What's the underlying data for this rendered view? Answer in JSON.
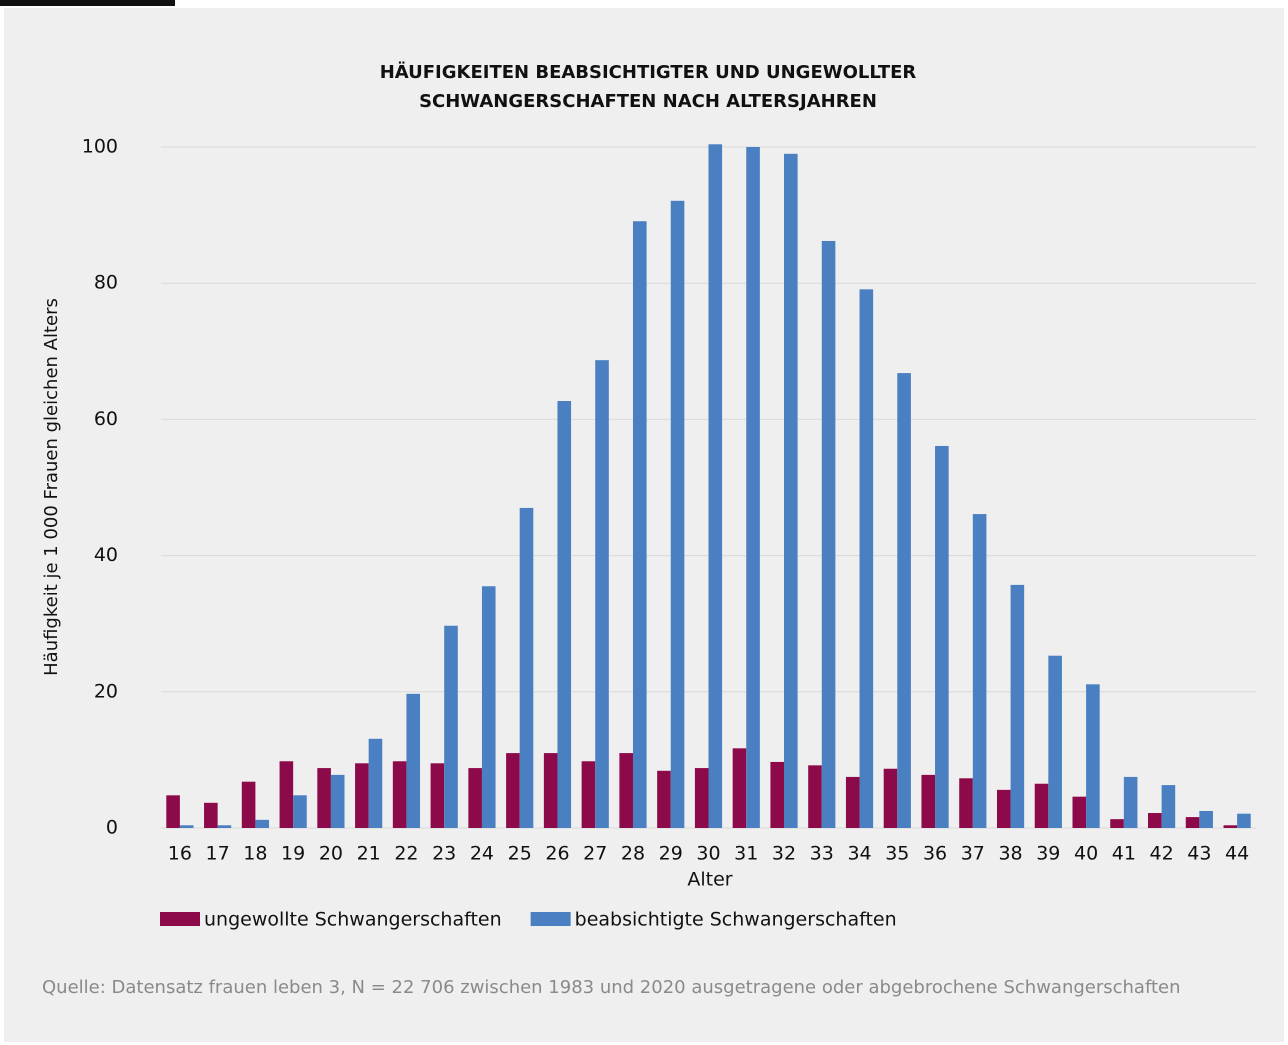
{
  "chart_data": {
    "type": "bar",
    "title": [
      "HÄUFIGKEITEN BEABSICHTIGTER UND UNGEWOLLTER",
      "SCHWANGERSCHAFTEN NACH ALTERSJAHREN"
    ],
    "x_label": "Alter",
    "y_label": "Häufigkeit je 1 000 Frauen gleichen Alters",
    "categories": [
      16,
      17,
      18,
      19,
      20,
      21,
      22,
      23,
      24,
      25,
      26,
      27,
      28,
      29,
      30,
      31,
      32,
      33,
      34,
      35,
      36,
      37,
      38,
      39,
      40,
      41,
      42,
      43,
      44
    ],
    "series": [
      {
        "name": "ungewollte Schwangerschaften",
        "color": "#8c0a4a",
        "values": [
          4.8,
          3.7,
          6.8,
          9.8,
          8.8,
          9.5,
          9.8,
          9.5,
          8.8,
          11,
          11,
          9.8,
          11,
          8.4,
          8.8,
          11.7,
          9.7,
          9.2,
          7.5,
          8.7,
          7.8,
          7.3,
          5.6,
          6.5,
          4.6,
          1.3,
          2.2,
          1.6,
          0.4
        ]
      },
      {
        "name": "beabsichtigte Schwangerschaften",
        "color": "#4a7fc1",
        "values": [
          0.4,
          0.4,
          1.2,
          4.8,
          7.8,
          13.1,
          19.7,
          29.7,
          35.5,
          47,
          62.7,
          68.7,
          89.1,
          92.1,
          100.4,
          100,
          99,
          86.2,
          79.1,
          66.8,
          56.1,
          46.1,
          35.7,
          25.3,
          21.1,
          7.5,
          6.3,
          2.5,
          2.1
        ]
      }
    ],
    "ylim": [
      0,
      100
    ],
    "yticks": [
      0,
      20,
      40,
      60,
      80,
      100
    ],
    "grid": true,
    "legend": "bottom",
    "source": "Quelle: Datensatz frauen leben 3, N = 22 706 zwischen 1983 und 2020 ausgetragene oder abgebrochene Schwangerschaften"
  }
}
